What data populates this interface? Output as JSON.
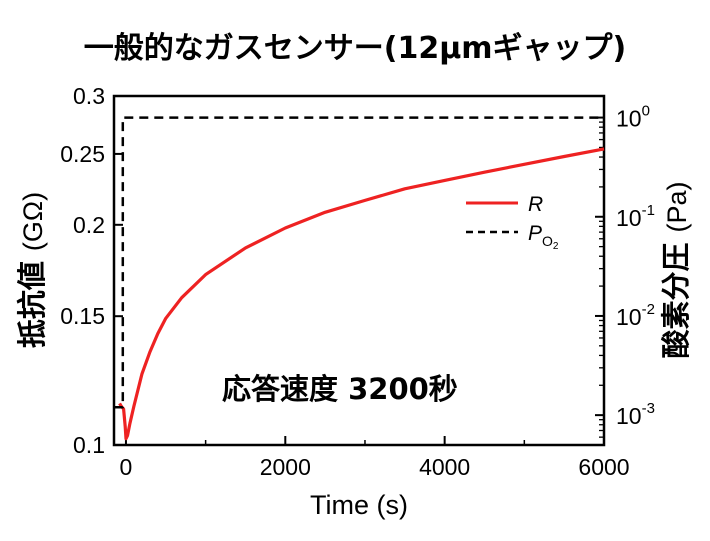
{
  "chart_data": {
    "type": "line",
    "title": "一般的なガスセンサー(12μmギャップ)",
    "xlabel": "Time (s)",
    "xlim": [
      -150,
      6000
    ],
    "x_ticks": [
      {
        "value": 0,
        "label": "0"
      },
      {
        "value": 2000,
        "label": "2000"
      },
      {
        "value": 4000,
        "label": "4000"
      },
      {
        "value": 6000,
        "label": "6000"
      }
    ],
    "ylabel_left": {
      "main": "抵抗値",
      "unit": "(GΩ)"
    },
    "ylim_left": [
      0.1,
      0.3
    ],
    "yscale_left": "log",
    "y_ticks_left": [
      {
        "value": 0.1,
        "label": "0.1"
      },
      {
        "value": 0.15,
        "label": "0.15"
      },
      {
        "value": 0.2,
        "label": "0.2"
      },
      {
        "value": 0.25,
        "label": "0.25"
      },
      {
        "value": 0.3,
        "label": "0.3"
      }
    ],
    "ylabel_right": {
      "main": "酸素分圧",
      "unit": "(Pa)"
    },
    "ylim_right": [
      0.0005,
      1.65
    ],
    "yscale_right": "log",
    "y_ticks_right": [
      {
        "value": 0.001,
        "base": "10",
        "exp": "-3"
      },
      {
        "value": 0.01,
        "base": "10",
        "exp": "-2"
      },
      {
        "value": 0.1,
        "base": "10",
        "exp": "-1"
      },
      {
        "value": 1,
        "base": "10",
        "exp": "0"
      }
    ],
    "series": [
      {
        "name": "R",
        "axis": "left",
        "color": "#ee2222",
        "style": "solid",
        "x": [
          -80,
          -60,
          -30,
          -10,
          0,
          20,
          50,
          100,
          200,
          300,
          400,
          500,
          700,
          1000,
          1500,
          2000,
          2500,
          3000,
          3500,
          4000,
          4500,
          5000,
          5500,
          6000
        ],
        "y": [
          0.114,
          0.113,
          0.112,
          0.106,
          0.102,
          0.103,
          0.107,
          0.113,
          0.125,
          0.134,
          0.142,
          0.149,
          0.159,
          0.171,
          0.186,
          0.198,
          0.208,
          0.216,
          0.224,
          0.23,
          0.236,
          0.242,
          0.248,
          0.254
        ]
      },
      {
        "name_base": "P",
        "name_sub": "O",
        "name_sub2": "2",
        "axis": "right",
        "color": "#000000",
        "style": "dashed",
        "x": [
          -150,
          -40,
          -40,
          6000
        ],
        "y": [
          0.0012,
          0.0012,
          1,
          1
        ]
      }
    ],
    "legend_position": "upper-right",
    "annotation": "応答速度 3200秒",
    "grid": false
  }
}
